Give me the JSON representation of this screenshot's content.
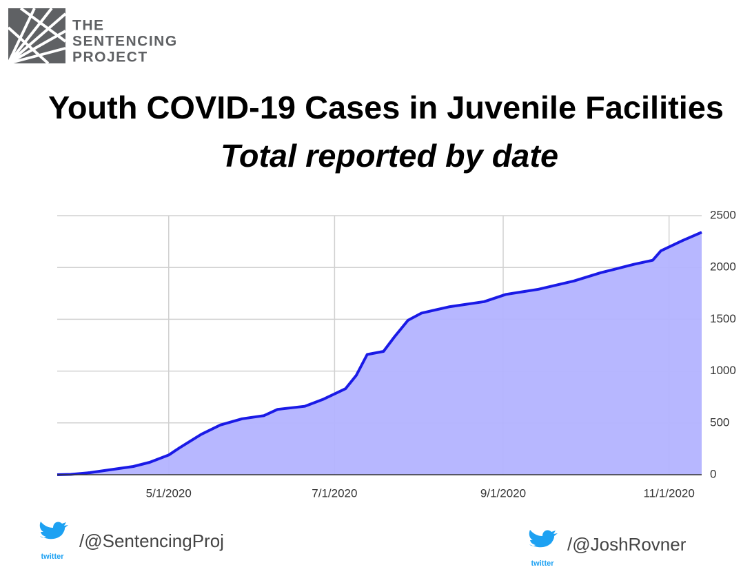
{
  "logo": {
    "lines": [
      "THE",
      "SENTENCING",
      "PROJECT"
    ]
  },
  "chart_data": {
    "type": "area",
    "title": "Youth COVID-19 Cases in Juvenile Facilities",
    "subtitle": "Total reported by date",
    "x": [
      "3/21/2020",
      "3/26/2020",
      "4/2/2020",
      "4/10/2020",
      "4/18/2020",
      "4/24/2020",
      "5/1/2020",
      "5/5/2020",
      "5/13/2020",
      "5/20/2020",
      "5/28/2020",
      "6/5/2020",
      "6/10/2020",
      "6/20/2020",
      "6/27/2020",
      "7/1/2020",
      "7/5/2020",
      "7/9/2020",
      "7/13/2020",
      "7/19/2020",
      "7/23/2020",
      "7/28/2020",
      "8/2/2020",
      "8/12/2020",
      "8/25/2020",
      "9/2/2020",
      "9/14/2020",
      "9/27/2020",
      "10/7/2020",
      "10/19/2020",
      "10/26/2020",
      "10/29/2020",
      "11/6/2020",
      "11/13/2020"
    ],
    "series": [
      {
        "color": "#1a1ae6",
        "fill": "#b3b3ff",
        "values": [
          0,
          3,
          20,
          50,
          80,
          120,
          190,
          260,
          390,
          480,
          540,
          570,
          630,
          660,
          730,
          780,
          830,
          960,
          1160,
          1190,
          1330,
          1490,
          1560,
          1620,
          1670,
          1740,
          1790,
          1870,
          1950,
          2030,
          2070,
          2160,
          2260,
          2340
        ]
      }
    ],
    "xlim": [
      "3/21/2020",
      "11/13/2020"
    ],
    "xticks": [
      "5/1/2020",
      "7/1/2020",
      "9/1/2020",
      "11/1/2020"
    ],
    "ylim": [
      0,
      2500
    ],
    "yticks": [
      0,
      500,
      1000,
      1500,
      2000,
      2500
    ],
    "grid": true
  },
  "footer": {
    "left": {
      "icon_label": "twitter",
      "handle": "/@SentencingProj"
    },
    "right": {
      "icon_label": "twitter",
      "handle": "/@JoshRovner"
    }
  }
}
